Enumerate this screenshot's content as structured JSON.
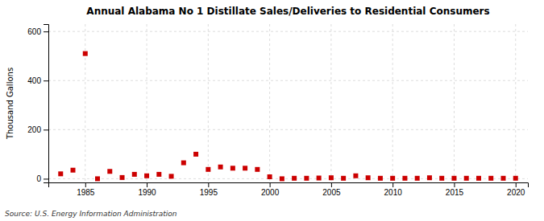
{
  "chart_data": {
    "type": "scatter",
    "title": "Annual Alabama No 1 Distillate Sales/Deliveries to Residential Consumers",
    "ylabel": "Thousand Gallons",
    "annotations": [
      "Source: U.S. Energy Information Administration"
    ],
    "color": "#cc0000",
    "marker": "square",
    "grid": true,
    "xlim": [
      1982,
      2021
    ],
    "ylim": [
      -15,
      630
    ],
    "xticks": [
      1985,
      1990,
      1995,
      2000,
      2005,
      2010,
      2015,
      2020
    ],
    "yticks": [
      0,
      200,
      400,
      600
    ],
    "x": [
      1983,
      1984,
      1985,
      1986,
      1987,
      1988,
      1989,
      1990,
      1991,
      1992,
      1993,
      1994,
      1995,
      1996,
      1997,
      1998,
      1999,
      2000,
      2001,
      2002,
      2003,
      2004,
      2005,
      2006,
      2007,
      2008,
      2009,
      2010,
      2011,
      2012,
      2013,
      2014,
      2015,
      2016,
      2017,
      2018,
      2019,
      2020
    ],
    "values": [
      20,
      35,
      510,
      0,
      30,
      5,
      18,
      12,
      18,
      10,
      65,
      100,
      38,
      48,
      43,
      43,
      38,
      8,
      0,
      2,
      2,
      3,
      4,
      2,
      12,
      4,
      2,
      2,
      2,
      2,
      4,
      2,
      2,
      2,
      2,
      2,
      2,
      2
    ]
  }
}
